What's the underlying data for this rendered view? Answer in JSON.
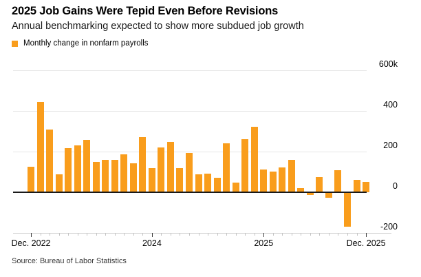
{
  "header": {
    "title": "2025 Job Gains Were Tepid Even Before Revisions",
    "subtitle": "Annual benchmarking expected to show more subdued job growth"
  },
  "legend": {
    "label": "Monthly change in nonfarm payrolls",
    "swatch_color": "#F99D1C"
  },
  "source": "Source: Bureau of Labor Statistics",
  "colors": {
    "bar": "#F99D1C",
    "gridline": "#E6E6E6",
    "zero_line": "#1A1A1A",
    "tick_line": "#D0D0D0",
    "minor_tick": "#C4C4C4",
    "major_tick": "#3A3A3A"
  },
  "chart_data": {
    "type": "bar",
    "title": "2025 Job Gains Were Tepid Even Before Revisions",
    "subtitle": "Annual benchmarking expected to show more subdued job growth",
    "legend_entries": [
      "Monthly change in nonfarm payrolls"
    ],
    "unit": "thousands of jobs (k)",
    "grid": "horizontal",
    "legend_position": "top-left",
    "x": [
      "Dec 2022",
      "Jan 2023",
      "Feb 2023",
      "Mar 2023",
      "Apr 2023",
      "May 2023",
      "Jun 2023",
      "Jul 2023",
      "Aug 2023",
      "Sep 2023",
      "Oct 2023",
      "Nov 2023",
      "Dec 2023",
      "Jan 2024",
      "Feb 2024",
      "Mar 2024",
      "Apr 2024",
      "May 2024",
      "Jun 2024",
      "Jul 2024",
      "Aug 2024",
      "Sep 2024",
      "Oct 2024",
      "Nov 2024",
      "Dec 2024",
      "Jan 2025",
      "Feb 2025",
      "Mar 2025",
      "Apr 2025",
      "May 2025",
      "Jun 2025",
      "Jul 2025",
      "Aug 2025",
      "Sep 2025",
      "Oct 2025",
      "Nov 2025",
      "Dec 2025"
    ],
    "values": [
      127,
      444,
      308,
      89,
      217,
      229,
      258,
      150,
      158,
      160,
      187,
      143,
      271,
      120,
      222,
      247,
      119,
      194,
      89,
      90,
      72,
      242,
      47,
      262,
      322,
      113,
      103,
      122,
      159,
      21,
      -15,
      74,
      -26,
      110,
      -170,
      60,
      52
    ],
    "y_axis": {
      "range": [
        -200,
        600
      ],
      "ticks": [
        600,
        400,
        200,
        0,
        -200
      ],
      "tick_labels": [
        "600k",
        "400",
        "200",
        "0",
        "-200"
      ]
    },
    "x_axis": {
      "major_ticks": [
        {
          "index": 0,
          "label": "Dec. 2022"
        },
        {
          "index": 13,
          "label": "2024"
        },
        {
          "index": 25,
          "label": "2025"
        },
        {
          "index": 36,
          "label": "Dec. 2025"
        }
      ]
    }
  }
}
